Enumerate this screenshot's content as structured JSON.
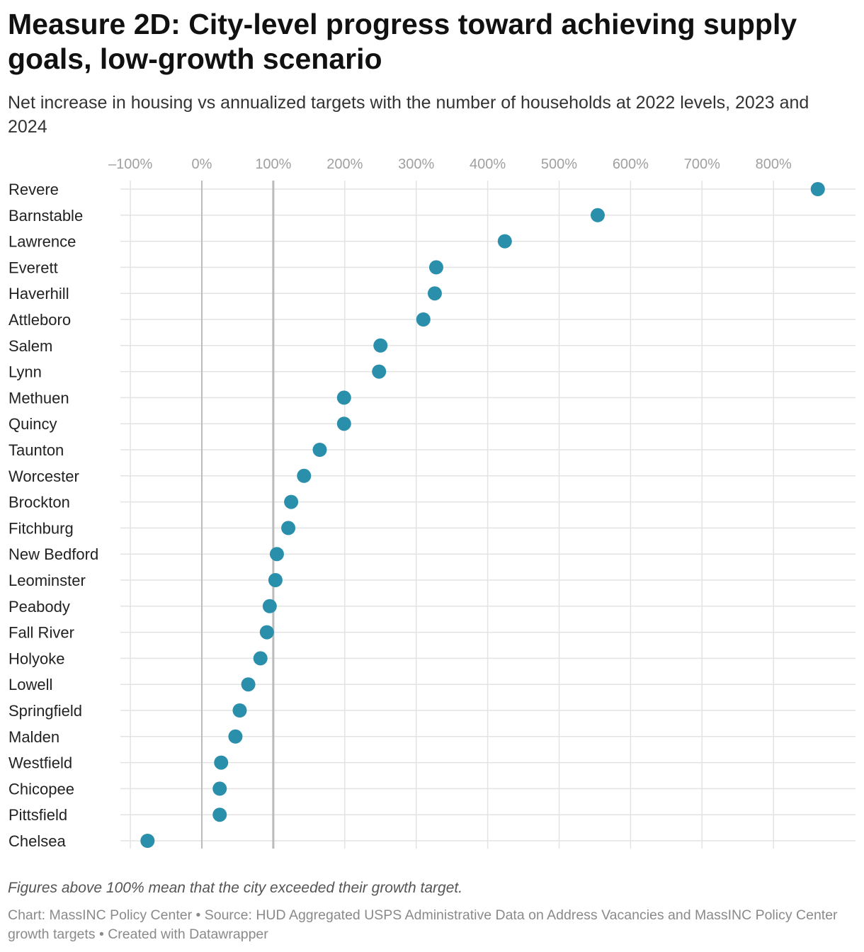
{
  "header": {
    "title": "Measure 2D: City-level progress toward achieving supply goals, low-growth scenario",
    "subtitle": "Net increase in housing vs annualized targets with the number of households at 2022 levels, 2023 and 2024"
  },
  "footer": {
    "note": "Figures above 100% mean that the city exceeded their growth target.",
    "credits": "Chart: MassINC Policy Center • Source: HUD Aggregated USPS Administrative Data on Address Vacancies and MassINC Policy Center growth targets • Created with Datawrapper"
  },
  "colors": {
    "dot": "#2a8fab",
    "grid": "#e3e3e3",
    "reference_line": "#bbbbbb",
    "tick_text": "#a0a0a0"
  },
  "chart_data": {
    "type": "scatter",
    "title": "Measure 2D: City-level progress toward achieving supply goals, low-growth scenario",
    "xlabel": "",
    "ylabel": "",
    "xlim": [
      -115,
      880
    ],
    "x_ticks": [
      -100,
      0,
      100,
      200,
      300,
      400,
      500,
      600,
      700,
      800
    ],
    "x_tick_labels": [
      "–100%",
      "0%",
      "100%",
      "200%",
      "300%",
      "400%",
      "500%",
      "600%",
      "700%",
      "800%"
    ],
    "reference_lines": [
      0,
      100
    ],
    "grid": true,
    "legend": "none",
    "categories": [
      "Revere",
      "Barnstable",
      "Lawrence",
      "Everett",
      "Haverhill",
      "Attleboro",
      "Salem",
      "Lynn",
      "Methuen",
      "Quincy",
      "Taunton",
      "Worcester",
      "Brockton",
      "Fitchburg",
      "New Bedford",
      "Leominster",
      "Peabody",
      "Fall River",
      "Holyoke",
      "Lowell",
      "Springfield",
      "Malden",
      "Westfield",
      "Chicopee",
      "Pittsfield",
      "Chelsea"
    ],
    "values": [
      862,
      554,
      424,
      328,
      326,
      310,
      250,
      248,
      199,
      199,
      165,
      143,
      125,
      121,
      105,
      103,
      95,
      91,
      82,
      65,
      53,
      47,
      27,
      25,
      25,
      -76
    ]
  }
}
